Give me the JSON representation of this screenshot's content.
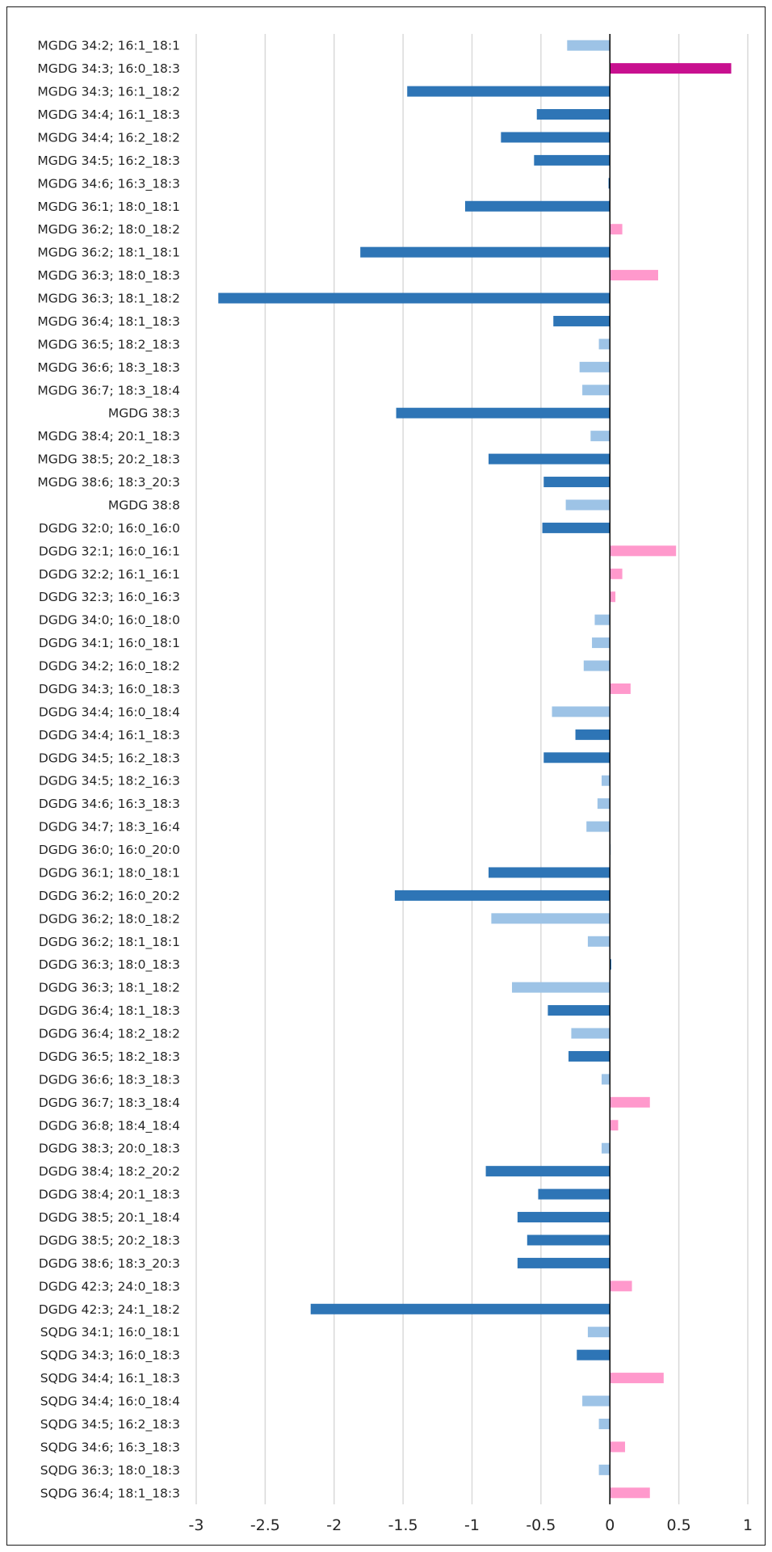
{
  "chart_data": {
    "type": "bar",
    "orientation": "horizontal",
    "categories": [
      "MGDG 34:2; 16:1_18:1",
      "MGDG 34:3; 16:0_18:3",
      "MGDG 34:3; 16:1_18:2",
      "MGDG 34:4; 16:1_18:3",
      "MGDG 34:4; 16:2_18:2",
      "MGDG 34:5; 16:2_18:3",
      "MGDG 34:6; 16:3_18:3",
      "MGDG 36:1; 18:0_18:1",
      "MGDG 36:2; 18:0_18:2",
      "MGDG 36:2; 18:1_18:1",
      "MGDG 36:3; 18:0_18:3",
      "MGDG 36:3; 18:1_18:2",
      "MGDG 36:4; 18:1_18:3",
      "MGDG 36:5; 18:2_18:3",
      "MGDG 36:6; 18:3_18:3",
      "MGDG 36:7; 18:3_18:4",
      "MGDG 38:3",
      "MGDG 38:4; 20:1_18:3",
      "MGDG 38:5; 20:2_18:3",
      "MGDG 38:6; 18:3_20:3",
      "MGDG 38:8",
      "DGDG 32:0; 16:0_16:0",
      "DGDG 32:1; 16:0_16:1",
      "DGDG 32:2; 16:1_16:1",
      "DGDG 32:3; 16:0_16:3",
      "DGDG 34:0; 16:0_18:0",
      "DGDG 34:1; 16:0_18:1",
      "DGDG 34:2; 16:0_18:2",
      "DGDG 34:3; 16:0_18:3",
      "DGDG 34:4; 16:0_18:4",
      "DGDG 34:4; 16:1_18:3",
      "DGDG 34:5; 16:2_18:3",
      "DGDG 34:5; 18:2_16:3",
      "DGDG 34:6; 16:3_18:3",
      "DGDG 34:7; 18:3_16:4",
      "DGDG 36:0; 16:0_20:0",
      "DGDG 36:1; 18:0_18:1",
      "DGDG 36:2; 16:0_20:2",
      "DGDG 36:2; 18:0_18:2",
      "DGDG 36:2; 18:1_18:1",
      "DGDG 36:3; 18:0_18:3",
      "DGDG 36:3; 18:1_18:2",
      "DGDG 36:4; 18:1_18:3",
      "DGDG 36:4; 18:2_18:2",
      "DGDG 36:5; 18:2_18:3",
      "DGDG 36:6; 18:3_18:3",
      "DGDG 36:7; 18:3_18:4",
      "DGDG 36:8; 18:4_18:4",
      "DGDG 38:3; 20:0_18:3",
      "DGDG 38:4; 18:2_20:2",
      "DGDG 38:4; 20:1_18:3",
      "DGDG 38:5; 20:1_18:4",
      "DGDG 38:5; 20:2_18:3",
      "DGDG 38:6; 18:3_20:3",
      "DGDG 42:3; 24:0_18:3",
      "DGDG 42:3; 24:1_18:2",
      "SQDG 34:1; 16:0_18:1",
      "SQDG 34:3; 16:0_18:3",
      "SQDG 34:4; 16:1_18:3",
      "SQDG 34:4; 16:0_18:4",
      "SQDG 34:5; 16:2_18:3",
      "SQDG 34:6; 16:3_18:3",
      "SQDG 36:3; 18:0_18:3",
      "SQDG 36:4; 18:1_18:3"
    ],
    "values": [
      -0.31,
      0.88,
      -1.47,
      -0.53,
      -0.79,
      -0.55,
      -0.01,
      -1.05,
      0.09,
      -1.81,
      0.35,
      -2.84,
      -0.41,
      -0.08,
      -0.22,
      -0.2,
      -1.55,
      -0.14,
      -0.88,
      -0.48,
      -0.32,
      -0.49,
      0.48,
      0.09,
      0.04,
      -0.11,
      -0.13,
      -0.19,
      0.15,
      -0.42,
      -0.25,
      -0.48,
      -0.06,
      -0.09,
      -0.17,
      0.0,
      -0.88,
      -1.56,
      -0.86,
      -0.16,
      0.01,
      -0.71,
      -0.45,
      -0.28,
      -0.3,
      -0.06,
      0.29,
      0.06,
      -0.06,
      -0.9,
      -0.52,
      -0.67,
      -0.6,
      -0.67,
      0.16,
      -2.17,
      -0.16,
      -0.24,
      0.39,
      -0.2,
      -0.08,
      0.11,
      -0.08,
      0.29
    ],
    "bar_colors": [
      "#9DC3E6",
      "#C8108F",
      "#2E75B6",
      "#2E75B6",
      "#2E75B6",
      "#2E75B6",
      "#2E75B6",
      "#2E75B6",
      "#FF99CC",
      "#2E75B6",
      "#FF99CC",
      "#2E75B6",
      "#2E75B6",
      "#9DC3E6",
      "#9DC3E6",
      "#9DC3E6",
      "#2E75B6",
      "#9DC3E6",
      "#2E75B6",
      "#2E75B6",
      "#9DC3E6",
      "#2E75B6",
      "#FF99CC",
      "#FF99CC",
      "#FF99CC",
      "#9DC3E6",
      "#9DC3E6",
      "#9DC3E6",
      "#FF99CC",
      "#9DC3E6",
      "#2E75B6",
      "#2E75B6",
      "#9DC3E6",
      "#9DC3E6",
      "#9DC3E6",
      "#9DC3E6",
      "#2E75B6",
      "#2E75B6",
      "#9DC3E6",
      "#9DC3E6",
      "#2E75B6",
      "#9DC3E6",
      "#2E75B6",
      "#9DC3E6",
      "#2E75B6",
      "#9DC3E6",
      "#FF99CC",
      "#FF99CC",
      "#9DC3E6",
      "#2E75B6",
      "#2E75B6",
      "#2E75B6",
      "#2E75B6",
      "#2E75B6",
      "#FF99CC",
      "#2E75B6",
      "#9DC3E6",
      "#2E75B6",
      "#FF99CC",
      "#9DC3E6",
      "#9DC3E6",
      "#FF99CC",
      "#9DC3E6",
      "#FF99CC"
    ],
    "xlim": [
      -3,
      1
    ],
    "xticks": [
      -3,
      -2.5,
      -2,
      -1.5,
      -1,
      -0.5,
      0,
      0.5,
      1
    ],
    "xtick_labels": [
      "-3",
      "-2.5",
      "-2",
      "-1.5",
      "-1",
      "-0.5",
      "0",
      "0.5",
      "1"
    ],
    "grid": true,
    "legend": "none",
    "title": "",
    "xlabel": "",
    "ylabel": "",
    "colors": {
      "grid": "#D9D9D9",
      "axis": "#000000",
      "dark_blue": "#2E75B6",
      "light_blue": "#9DC3E6",
      "pink": "#FF99CC",
      "magenta": "#C8108F"
    }
  }
}
